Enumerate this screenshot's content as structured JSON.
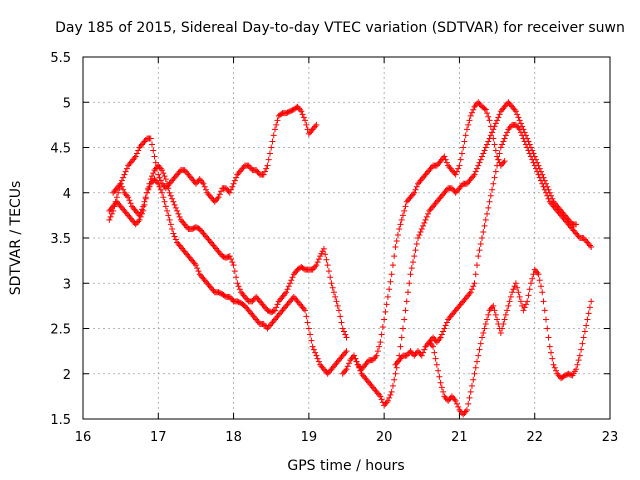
{
  "chart_data": {
    "type": "scatter",
    "title": "Day 185 of 2015, Sidereal Day-to-day VTEC variation (SDTVAR) for receiver suwn",
    "xlabel": "GPS time / hours",
    "ylabel": "SDTVAR / TECUs",
    "xlim": [
      16,
      23
    ],
    "ylim": [
      1.5,
      5.5
    ],
    "xticks": [
      "16",
      "17",
      "18",
      "19",
      "20",
      "21",
      "22",
      "23"
    ],
    "yticks": [
      "1.5",
      "2",
      "2.5",
      "3",
      "3.5",
      "4",
      "4.5",
      "5",
      "5.5"
    ],
    "grid": true,
    "marker": "+",
    "color": "#ff0000",
    "series": [
      {
        "name": "track-1",
        "x": [
          16.35,
          16.4,
          16.45,
          16.5,
          16.55,
          16.6,
          16.65,
          16.7,
          16.75,
          16.8,
          16.85,
          16.9,
          16.95,
          17.0,
          17.05,
          17.1,
          17.15,
          17.2,
          17.25,
          17.3,
          17.35,
          17.4,
          17.45,
          17.5,
          17.55,
          17.6,
          17.65,
          17.7,
          17.75,
          17.8,
          17.85,
          17.9,
          17.95,
          18.0,
          18.05,
          18.1,
          18.15,
          18.2,
          18.25,
          18.3,
          18.35,
          18.4,
          18.45,
          18.5,
          18.55,
          18.6,
          18.65,
          18.7,
          18.75,
          18.8,
          18.85,
          18.9,
          18.95,
          19.0,
          19.05,
          19.1
        ],
        "y": [
          3.7,
          3.8,
          3.95,
          4.1,
          4.2,
          4.3,
          4.35,
          4.4,
          4.5,
          4.55,
          4.6,
          4.6,
          4.4,
          4.2,
          4.1,
          4.05,
          4.1,
          4.15,
          4.2,
          4.25,
          4.25,
          4.2,
          4.15,
          4.1,
          4.15,
          4.1,
          4.0,
          3.95,
          3.9,
          3.95,
          4.05,
          4.05,
          4.0,
          4.1,
          4.2,
          4.25,
          4.3,
          4.3,
          4.25,
          4.25,
          4.2,
          4.2,
          4.3,
          4.5,
          4.7,
          4.85,
          4.88,
          4.88,
          4.9,
          4.92,
          4.95,
          4.9,
          4.8,
          4.65,
          4.7,
          4.75
        ]
      },
      {
        "name": "track-2",
        "x": [
          16.35,
          16.4,
          16.45,
          16.5,
          16.55,
          16.6,
          16.65,
          16.7,
          16.75,
          16.8,
          16.85,
          16.9,
          16.95,
          17.0,
          17.05,
          17.1,
          17.15,
          17.2,
          17.25,
          17.3,
          17.35,
          17.4,
          17.45,
          17.5,
          17.55,
          17.6,
          17.65,
          17.7,
          17.75,
          17.8,
          17.85,
          17.9,
          17.95,
          18.0,
          18.05,
          18.1,
          18.15,
          18.2,
          18.25,
          18.3,
          18.35,
          18.4,
          18.45,
          18.5,
          18.55,
          18.6,
          18.65,
          18.7,
          18.75,
          18.8,
          18.85,
          18.9,
          18.95,
          19.0,
          19.05,
          19.1,
          19.15,
          19.2,
          19.25,
          19.3,
          19.35,
          19.4,
          19.45,
          19.5
        ],
        "y": [
          3.8,
          3.85,
          3.9,
          3.85,
          3.8,
          3.75,
          3.7,
          3.65,
          3.7,
          3.8,
          4.0,
          4.1,
          4.15,
          4.1,
          4.0,
          3.85,
          3.7,
          3.55,
          3.45,
          3.4,
          3.35,
          3.3,
          3.25,
          3.2,
          3.1,
          3.05,
          3.0,
          2.95,
          2.9,
          2.9,
          2.88,
          2.85,
          2.85,
          2.8,
          2.8,
          2.78,
          2.75,
          2.7,
          2.65,
          2.6,
          2.55,
          2.55,
          2.5,
          2.55,
          2.6,
          2.65,
          2.7,
          2.75,
          2.8,
          2.85,
          2.8,
          2.75,
          2.7,
          2.5,
          2.3,
          2.2,
          2.1,
          2.05,
          2.0,
          2.05,
          2.1,
          2.15,
          2.2,
          2.25
        ]
      },
      {
        "name": "track-3",
        "x": [
          16.4,
          16.45,
          16.5,
          16.55,
          16.6,
          16.65,
          16.7,
          16.75,
          16.8,
          16.85,
          16.9,
          16.95,
          17.0,
          17.05,
          17.1,
          17.15,
          17.2,
          17.25,
          17.3,
          17.35,
          17.4,
          17.45,
          17.5,
          17.55,
          17.6,
          17.65,
          17.7,
          17.75,
          17.8,
          17.85,
          17.9,
          17.95,
          18.0,
          18.05,
          18.1,
          18.15,
          18.2,
          18.25,
          18.3,
          18.35,
          18.4,
          18.45,
          18.5,
          18.55,
          18.6,
          18.65,
          18.7,
          18.75,
          18.8,
          18.85,
          18.9,
          18.95,
          19.0,
          19.05,
          19.1,
          19.15,
          19.2,
          19.25,
          19.3,
          19.35,
          19.4,
          19.45,
          19.5
        ],
        "y": [
          4.0,
          4.05,
          4.1,
          4.0,
          3.95,
          3.85,
          3.8,
          3.75,
          3.85,
          4.0,
          4.15,
          4.25,
          4.3,
          4.25,
          4.15,
          4.0,
          3.9,
          3.8,
          3.7,
          3.65,
          3.6,
          3.6,
          3.62,
          3.6,
          3.55,
          3.5,
          3.45,
          3.4,
          3.35,
          3.3,
          3.28,
          3.3,
          3.2,
          3.0,
          2.9,
          2.85,
          2.8,
          2.8,
          2.85,
          2.8,
          2.75,
          2.7,
          2.68,
          2.7,
          2.8,
          2.85,
          2.9,
          3.0,
          3.1,
          3.15,
          3.18,
          3.15,
          3.15,
          3.15,
          3.2,
          3.3,
          3.38,
          3.2,
          3.0,
          2.85,
          2.7,
          2.5,
          2.4
        ]
      },
      {
        "name": "track-4",
        "x": [
          19.45,
          19.5,
          19.55,
          19.6,
          19.65,
          19.7,
          19.75,
          19.8,
          19.85,
          19.9,
          19.95,
          20.0,
          20.05,
          20.1,
          20.15,
          20.2,
          20.25,
          20.3,
          20.35,
          20.4,
          20.45,
          20.5,
          20.55,
          20.6,
          20.65,
          20.7,
          20.75,
          20.8,
          20.85,
          20.9,
          20.95,
          21.0,
          21.05,
          21.1,
          21.15,
          21.2,
          21.25,
          21.3,
          21.35,
          21.4,
          21.45,
          21.5,
          21.55,
          21.6
        ],
        "y": [
          2.0,
          2.05,
          2.15,
          2.2,
          2.1,
          2.05,
          2.1,
          2.15,
          2.15,
          2.2,
          2.35,
          2.6,
          2.85,
          3.1,
          3.4,
          3.6,
          3.75,
          3.9,
          3.95,
          4.0,
          4.1,
          4.15,
          4.2,
          4.25,
          4.3,
          4.3,
          4.35,
          4.4,
          4.3,
          4.25,
          4.2,
          4.3,
          4.5,
          4.7,
          4.85,
          4.95,
          5.0,
          4.95,
          4.92,
          4.8,
          4.6,
          4.4,
          4.3,
          4.35
        ]
      },
      {
        "name": "track-5",
        "x": [
          19.6,
          19.65,
          19.7,
          19.75,
          19.8,
          19.85,
          19.9,
          19.95,
          20.0,
          20.05,
          20.1,
          20.15,
          20.2,
          20.25,
          20.3,
          20.35,
          20.4,
          20.45,
          20.5,
          20.55,
          20.6,
          20.65,
          20.7,
          20.75,
          20.8,
          20.85,
          20.9,
          20.95,
          21.0,
          21.05,
          21.1,
          21.15,
          21.2,
          21.25,
          21.3,
          21.35,
          21.4,
          21.45,
          21.5,
          21.55,
          21.6,
          21.65,
          21.7,
          21.75,
          21.8,
          21.85,
          21.9,
          21.95,
          22.0,
          22.05,
          22.1,
          22.15,
          22.2,
          22.25,
          22.3,
          22.35,
          22.4,
          22.45,
          22.5,
          22.55
        ],
        "y": [
          2.2,
          2.1,
          2.0,
          1.95,
          1.9,
          1.85,
          1.8,
          1.75,
          1.65,
          1.7,
          1.8,
          2.0,
          2.2,
          2.5,
          2.8,
          3.1,
          3.3,
          3.5,
          3.6,
          3.7,
          3.8,
          3.85,
          3.9,
          3.95,
          4.0,
          4.05,
          4.05,
          4.0,
          4.05,
          4.1,
          4.1,
          4.15,
          4.2,
          4.3,
          4.4,
          4.5,
          4.6,
          4.7,
          4.8,
          4.9,
          4.95,
          5.0,
          4.95,
          4.9,
          4.8,
          4.7,
          4.6,
          4.5,
          4.4,
          4.3,
          4.2,
          4.1,
          4.0,
          3.9,
          3.85,
          3.8,
          3.75,
          3.7,
          3.65,
          3.65
        ]
      },
      {
        "name": "track-6",
        "x": [
          20.15,
          20.2,
          20.25,
          20.3,
          20.35,
          20.4,
          20.45,
          20.5,
          20.55,
          20.6,
          20.65,
          20.7,
          20.75,
          20.8,
          20.85,
          20.9,
          20.95,
          21.0,
          21.05,
          21.1,
          21.15,
          21.2,
          21.25,
          21.3,
          21.35,
          21.4,
          21.45,
          21.5,
          21.55,
          21.6,
          21.65,
          21.7,
          21.75,
          21.8,
          21.85,
          21.9,
          21.95,
          22.0,
          22.05,
          22.1,
          22.15,
          22.2,
          22.25,
          22.3,
          22.35,
          22.4,
          22.45,
          22.5,
          22.55,
          22.6,
          22.65,
          22.7,
          22.75
        ],
        "y": [
          2.1,
          2.15,
          2.2,
          2.2,
          2.25,
          2.2,
          2.25,
          2.2,
          2.3,
          2.35,
          2.4,
          2.35,
          2.4,
          2.5,
          2.6,
          2.65,
          2.7,
          2.75,
          2.8,
          2.85,
          2.9,
          3.0,
          3.3,
          3.5,
          3.7,
          3.9,
          4.1,
          4.3,
          4.5,
          4.6,
          4.7,
          4.75,
          4.75,
          4.7,
          4.6,
          4.5,
          4.4,
          4.3,
          4.2,
          4.1,
          4.0,
          3.9,
          3.85,
          3.8,
          3.75,
          3.7,
          3.65,
          3.6,
          3.55,
          3.5,
          3.5,
          3.45,
          3.4
        ]
      },
      {
        "name": "track-7",
        "x": [
          20.6,
          20.65,
          20.7,
          20.75,
          20.8,
          20.85,
          20.9,
          20.95,
          21.0,
          21.05,
          21.1,
          21.15,
          21.2,
          21.25,
          21.3,
          21.35,
          21.4,
          21.45,
          21.5,
          21.55,
          21.6,
          21.65,
          21.7,
          21.75,
          21.8,
          21.85,
          21.9,
          21.95,
          22.0,
          22.05,
          22.1,
          22.15,
          22.2,
          22.25,
          22.3,
          22.35,
          22.4,
          22.45,
          22.5,
          22.55,
          22.6,
          22.65,
          22.7,
          22.75
        ],
        "y": [
          2.35,
          2.3,
          2.1,
          1.9,
          1.75,
          1.7,
          1.75,
          1.7,
          1.6,
          1.55,
          1.6,
          1.8,
          2.0,
          2.2,
          2.4,
          2.55,
          2.7,
          2.75,
          2.6,
          2.45,
          2.6,
          2.75,
          2.9,
          3.0,
          2.85,
          2.7,
          2.8,
          3.0,
          3.15,
          3.1,
          2.9,
          2.6,
          2.3,
          2.1,
          2.0,
          1.95,
          1.98,
          2.0,
          1.98,
          2.05,
          2.2,
          2.4,
          2.6,
          2.8
        ]
      }
    ]
  }
}
